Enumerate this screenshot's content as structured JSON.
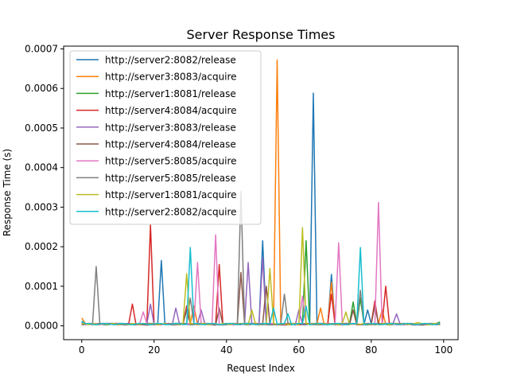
{
  "chart_data": {
    "type": "line",
    "title": "Server Response Times",
    "xlabel": "Request Index",
    "ylabel": "Response Time (s)",
    "xlim": [
      -5,
      104
    ],
    "ylim": [
      -3.5e-05,
      0.000707
    ],
    "xticks": [
      0,
      20,
      40,
      60,
      80,
      100
    ],
    "xtick_labels": [
      "0",
      "20",
      "40",
      "60",
      "80",
      "100"
    ],
    "yticks": [
      0,
      0.0001,
      0.0002,
      0.0003,
      0.0004,
      0.0005,
      0.0006,
      0.0007
    ],
    "ytick_labels": [
      "0.0000",
      "0.0001",
      "0.0002",
      "0.0003",
      "0.0004",
      "0.0005",
      "0.0006",
      "0.0007"
    ],
    "grid": false,
    "legend_position": "upper-left",
    "series": [
      {
        "name": "http://server2:8082/release",
        "color": "#1f77b4",
        "peaks": [
          [
            0,
            1e-05
          ],
          [
            22,
            0.000165
          ],
          [
            50,
            0.000215
          ],
          [
            64,
            0.000588
          ],
          [
            69,
            0.00013
          ],
          [
            79,
            4e-05
          ]
        ]
      },
      {
        "name": "http://server3:8083/acquire",
        "color": "#ff7f0e",
        "peaks": [
          [
            0,
            2e-05
          ],
          [
            31,
            5e-05
          ],
          [
            54,
            0.000672
          ],
          [
            66,
            4.5e-05
          ],
          [
            69,
            0.00011
          ],
          [
            83,
            4e-05
          ],
          [
            93,
            8e-06
          ]
        ]
      },
      {
        "name": "http://server1:8081/release",
        "color": "#2ca02c",
        "peaks": [
          [
            62,
            0.000215
          ],
          [
            75,
            6e-05
          ],
          [
            77,
            7e-05
          ],
          [
            99,
            1e-05
          ]
        ]
      },
      {
        "name": "http://server4:8084/acquire",
        "color": "#d62728",
        "peaks": [
          [
            14,
            5.5e-05
          ],
          [
            19,
            0.000255
          ],
          [
            29,
            5e-05
          ],
          [
            38,
            0.000155
          ],
          [
            69,
            8e-05
          ],
          [
            81,
            6.3e-05
          ],
          [
            84,
            0.0001
          ]
        ]
      },
      {
        "name": "http://server3:8083/release",
        "color": "#9467bd",
        "peaks": [
          [
            19,
            5.5e-05
          ],
          [
            26,
            4.5e-05
          ],
          [
            33,
            4e-05
          ],
          [
            46,
            0.00016
          ],
          [
            50,
            0.000172
          ],
          [
            60,
            4e-05
          ],
          [
            87,
            3e-05
          ]
        ]
      },
      {
        "name": "http://server4:8084/release",
        "color": "#8c564b",
        "peaks": [
          [
            29,
            4e-05
          ],
          [
            38,
            4.5e-05
          ],
          [
            44,
            0.000135
          ],
          [
            51,
            0.0001
          ],
          [
            75,
            4e-05
          ],
          [
            81,
            5e-05
          ]
        ]
      },
      {
        "name": "http://server5:8085/acquire",
        "color": "#e377c2",
        "peaks": [
          [
            17,
            3.5e-05
          ],
          [
            32,
            0.00016
          ],
          [
            37,
            0.00023
          ],
          [
            61,
            7.5e-05
          ],
          [
            71,
            0.00021
          ],
          [
            82,
            0.000312
          ]
        ]
      },
      {
        "name": "http://server5:8085/release",
        "color": "#7f7f7f",
        "peaks": [
          [
            4,
            0.00015
          ],
          [
            30,
            7e-05
          ],
          [
            44,
            0.00034
          ],
          [
            56,
            8e-05
          ],
          [
            77,
            9e-05
          ]
        ]
      },
      {
        "name": "http://server1:8081/acquire",
        "color": "#bcbd22",
        "peaks": [
          [
            29,
            0.000132
          ],
          [
            47,
            4e-05
          ],
          [
            52,
            0.000145
          ],
          [
            61,
            0.000248
          ],
          [
            73,
            3.5e-05
          ],
          [
            93,
            8e-06
          ]
        ]
      },
      {
        "name": "http://server2:8082/acquire",
        "color": "#17becf",
        "peaks": [
          [
            0,
            1.2e-05
          ],
          [
            30,
            0.000198
          ],
          [
            53,
            4.5e-05
          ],
          [
            57,
            3e-05
          ],
          [
            62,
            5e-05
          ],
          [
            77,
            0.000198
          ]
        ]
      }
    ]
  }
}
